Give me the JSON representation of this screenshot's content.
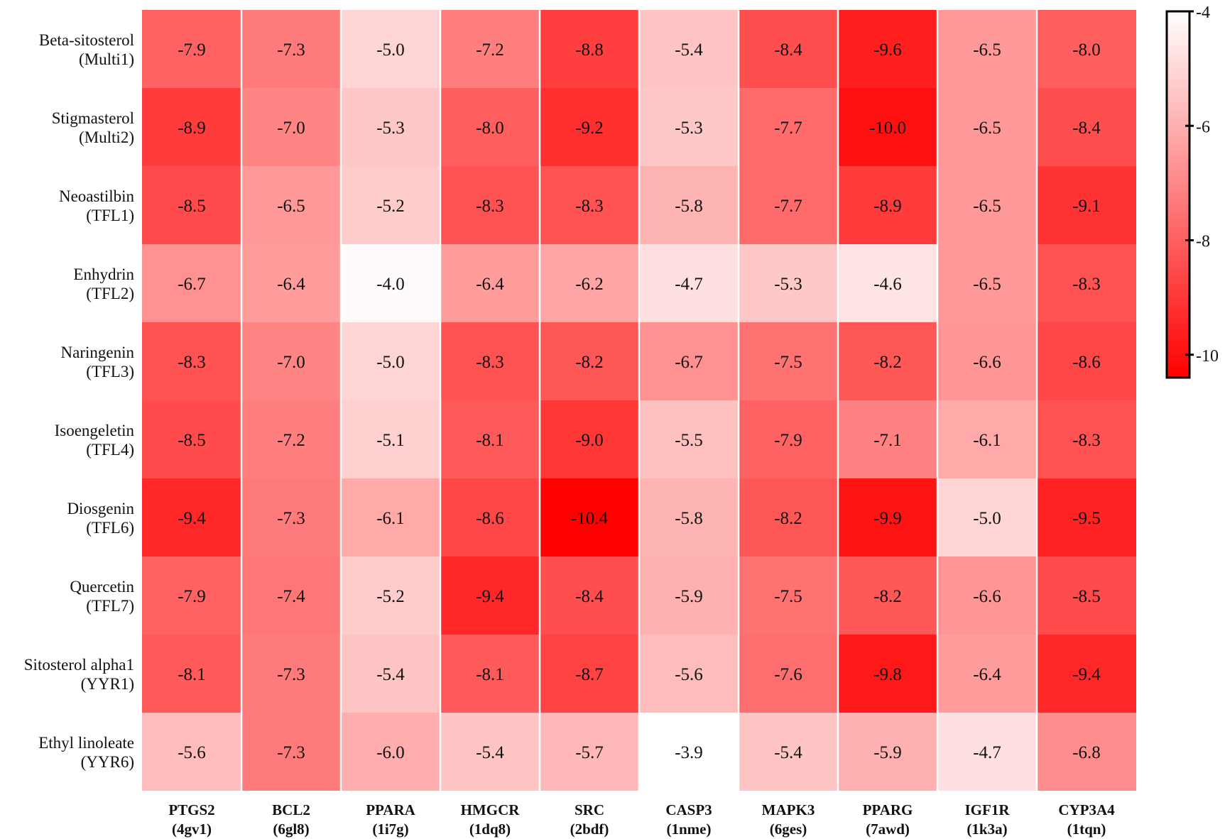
{
  "chart_data": {
    "type": "heatmap",
    "rows": [
      {
        "name": "Beta-sitosterol",
        "code": "(Multi1)"
      },
      {
        "name": "Stigmasterol",
        "code": "(Multi2)"
      },
      {
        "name": "Neoastilbin",
        "code": "(TFL1)"
      },
      {
        "name": "Enhydrin",
        "code": "(TFL2)"
      },
      {
        "name": "Naringenin",
        "code": "(TFL3)"
      },
      {
        "name": "Isoengeletin",
        "code": "(TFL4)"
      },
      {
        "name": "Diosgenin",
        "code": "(TFL6)"
      },
      {
        "name": "Quercetin",
        "code": "(TFL7)"
      },
      {
        "name": "Sitosterol alpha1",
        "code": "(YYR1)"
      },
      {
        "name": "Ethyl linoleate",
        "code": "(YYR6)"
      }
    ],
    "columns": [
      {
        "name": "PTGS2",
        "code": "(4gv1)"
      },
      {
        "name": "BCL2",
        "code": "(6gl8)"
      },
      {
        "name": "PPARA",
        "code": "(1i7g)"
      },
      {
        "name": "HMGCR",
        "code": "(1dq8)"
      },
      {
        "name": "SRC",
        "code": "(2bdf)"
      },
      {
        "name": "CASP3",
        "code": "(1nme)"
      },
      {
        "name": "MAPK3",
        "code": "(6ges)"
      },
      {
        "name": "PPARG",
        "code": "(7awd)"
      },
      {
        "name": "IGF1R",
        "code": "(1k3a)"
      },
      {
        "name": "CYP3A4",
        "code": "(1tqn)"
      }
    ],
    "values": [
      [
        -7.9,
        -7.3,
        -5.0,
        -7.2,
        -8.8,
        -5.4,
        -8.4,
        -9.6,
        -6.5,
        -8.0
      ],
      [
        -8.9,
        -7.0,
        -5.3,
        -8.0,
        -9.2,
        -5.3,
        -7.7,
        -10.0,
        -6.5,
        -8.4
      ],
      [
        -8.5,
        -6.5,
        -5.2,
        -8.3,
        -8.3,
        -5.8,
        -7.7,
        -8.9,
        -6.5,
        -9.1
      ],
      [
        -6.7,
        -6.4,
        -4.0,
        -6.4,
        -6.2,
        -4.7,
        -5.3,
        -4.6,
        -6.5,
        -8.3
      ],
      [
        -8.3,
        -7.0,
        -5.0,
        -8.3,
        -8.2,
        -6.7,
        -7.5,
        -8.2,
        -6.6,
        -8.6
      ],
      [
        -8.5,
        -7.2,
        -5.1,
        -8.1,
        -9.0,
        -5.5,
        -7.9,
        -7.1,
        -6.1,
        -8.3
      ],
      [
        -9.4,
        -7.3,
        -6.1,
        -8.6,
        -10.4,
        -5.8,
        -8.2,
        -9.9,
        -5.0,
        -9.5
      ],
      [
        -7.9,
        -7.4,
        -5.2,
        -9.4,
        -8.4,
        -5.9,
        -7.5,
        -8.2,
        -6.6,
        -8.5
      ],
      [
        -8.1,
        -7.3,
        -5.4,
        -8.1,
        -8.7,
        -5.6,
        -7.6,
        -9.8,
        -6.4,
        -9.4
      ],
      [
        -5.6,
        -7.3,
        -6.0,
        -5.4,
        -5.7,
        -3.9,
        -5.4,
        -5.9,
        -4.7,
        -6.8
      ]
    ],
    "colorbar": {
      "min": -10.4,
      "max": -4,
      "ticks": [
        "-4",
        "-6",
        "-8",
        "-10"
      ],
      "tick_values": [
        -4,
        -6,
        -8,
        -10
      ],
      "low_color": "#ffffff",
      "high_color": "#ff0000"
    },
    "color_range": [
      -10.4,
      -3.9
    ]
  }
}
